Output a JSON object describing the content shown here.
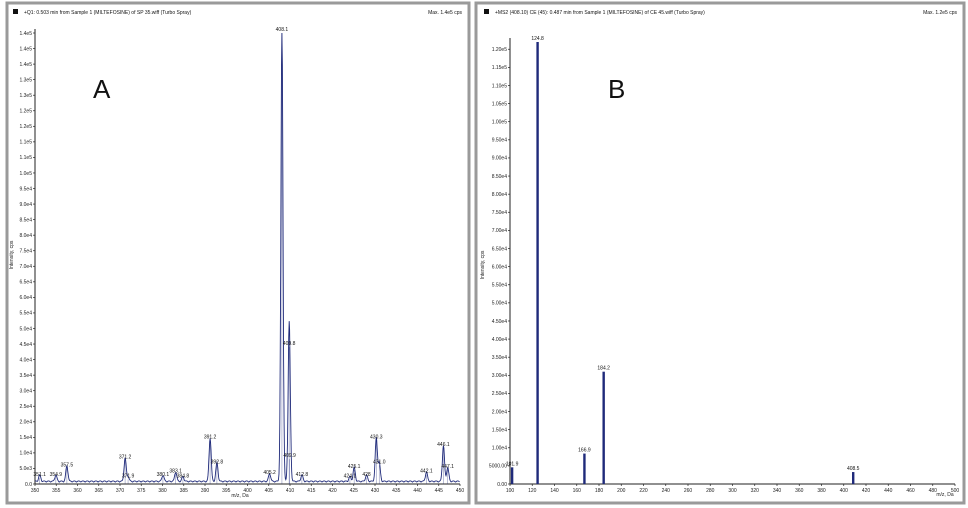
{
  "chart_data": [
    {
      "panel_label": "A",
      "type": "line",
      "title": "+Q1: 0.503 min from Sample 1 (MILTEFOSINE) of SP 35.wiff (Turbo Spray)",
      "max_label": "Max. 1.4e5 cps",
      "xlabel": "m/z, Da",
      "ylabel": "Intensity, cps",
      "xlim": [
        350,
        450
      ],
      "ylim": [
        0,
        145000
      ],
      "x_ticks": [
        350,
        355,
        360,
        365,
        370,
        375,
        380,
        385,
        390,
        395,
        400,
        405,
        410,
        415,
        420,
        425,
        430,
        435,
        440,
        445,
        450
      ],
      "y_tick_labels": [
        "0.0",
        "5.0e3",
        "1.0e4",
        "1.5e4",
        "2.0e4",
        "2.5e4",
        "3.0e4",
        "3.5e4",
        "4.0e4",
        "4.5e4",
        "5.0e4",
        "5.5e4",
        "6.0e4",
        "6.5e4",
        "7.0e4",
        "7.5e4",
        "8.0e4",
        "8.5e4",
        "9.0e4",
        "9.5e4",
        "1.0e5",
        "1.1e5",
        "1.1e5",
        "1.2e5",
        "1.2e5",
        "1.3e5",
        "1.3e5",
        "1.4e5",
        "1.4e5",
        "1.4e5"
      ],
      "y_tick_step": 5000,
      "peaks": [
        {
          "mz": 351.1,
          "intensity": 2000,
          "label": "351.1"
        },
        {
          "mz": 354.9,
          "intensity": 2000,
          "label": "354.9"
        },
        {
          "mz": 357.5,
          "intensity": 5000,
          "label": "357.5"
        },
        {
          "mz": 371.2,
          "intensity": 7500,
          "label": "371.2"
        },
        {
          "mz": 371.9,
          "intensity": 1500,
          "label": "371.9"
        },
        {
          "mz": 380.1,
          "intensity": 2000,
          "label": "380.1"
        },
        {
          "mz": 383.1,
          "intensity": 3000,
          "label": "383.1"
        },
        {
          "mz": 384.8,
          "intensity": 1500,
          "label": "384.8"
        },
        {
          "mz": 391.2,
          "intensity": 14000,
          "label": "391.2"
        },
        {
          "mz": 392.8,
          "intensity": 6000,
          "label": "392.8"
        },
        {
          "mz": 405.2,
          "intensity": 2500,
          "label": "405.2"
        },
        {
          "mz": 408.1,
          "intensity": 145000,
          "label": "408.1"
        },
        {
          "mz": 409.8,
          "intensity": 44000,
          "label": "409.8"
        },
        {
          "mz": 409.9,
          "intensity": 8000,
          "label": "409.9"
        },
        {
          "mz": 412.8,
          "intensity": 2000,
          "label": "412.8"
        },
        {
          "mz": 424.1,
          "intensity": 1500,
          "label": "424.1"
        },
        {
          "mz": 425.1,
          "intensity": 4500,
          "label": "425.1"
        },
        {
          "mz": 428.0,
          "intensity": 2000,
          "label": "428"
        },
        {
          "mz": 430.3,
          "intensity": 14000,
          "label": "430.3"
        },
        {
          "mz": 431.0,
          "intensity": 6000,
          "label": "431.0"
        },
        {
          "mz": 442.1,
          "intensity": 3000,
          "label": "442.1"
        },
        {
          "mz": 446.1,
          "intensity": 11500,
          "label": "446.1"
        },
        {
          "mz": 447.1,
          "intensity": 4500,
          "label": "447.1"
        }
      ]
    },
    {
      "panel_label": "B",
      "type": "bar",
      "title": "+MS2 (408.10) CE (45): 0.487 min from Sample 1 (MILTEFOSINE) of CE 45.wiff (Turbo Spray)",
      "max_label": "Max. 1.2e5 cps",
      "xlabel": "m/z, Da",
      "ylabel": "Intensity, cps",
      "xlim": [
        100,
        500
      ],
      "ylim": [
        0,
        122000
      ],
      "x_ticks": [
        100,
        120,
        140,
        160,
        180,
        200,
        220,
        240,
        260,
        280,
        300,
        320,
        340,
        360,
        380,
        400,
        420,
        440,
        460,
        480,
        500
      ],
      "y_tick_labels": [
        "0.00",
        "5000.00",
        "1.00e4",
        "1.50e4",
        "2.00e4",
        "2.50e4",
        "3.00e4",
        "3.50e4",
        "4.00e4",
        "4.50e4",
        "5.00e4",
        "5.50e4",
        "6.00e4",
        "6.50e4",
        "7.00e4",
        "7.50e4",
        "8.00e4",
        "8.50e4",
        "9.00e4",
        "9.50e4",
        "1.00e5",
        "1.05e5",
        "1.10e5",
        "1.15e5",
        "1.20e5"
      ],
      "y_tick_step": 5000,
      "peaks": [
        {
          "mz": 101.9,
          "intensity": 4600,
          "label": "101.9"
        },
        {
          "mz": 124.8,
          "intensity": 122000,
          "label": "124.8"
        },
        {
          "mz": 166.9,
          "intensity": 8400,
          "label": "166.9"
        },
        {
          "mz": 184.2,
          "intensity": 31000,
          "label": "184.2"
        },
        {
          "mz": 408.5,
          "intensity": 3300,
          "label": "408.5"
        }
      ]
    }
  ],
  "colors": {
    "trace": "#1f2a7a",
    "frame": "#9a9a9a"
  }
}
